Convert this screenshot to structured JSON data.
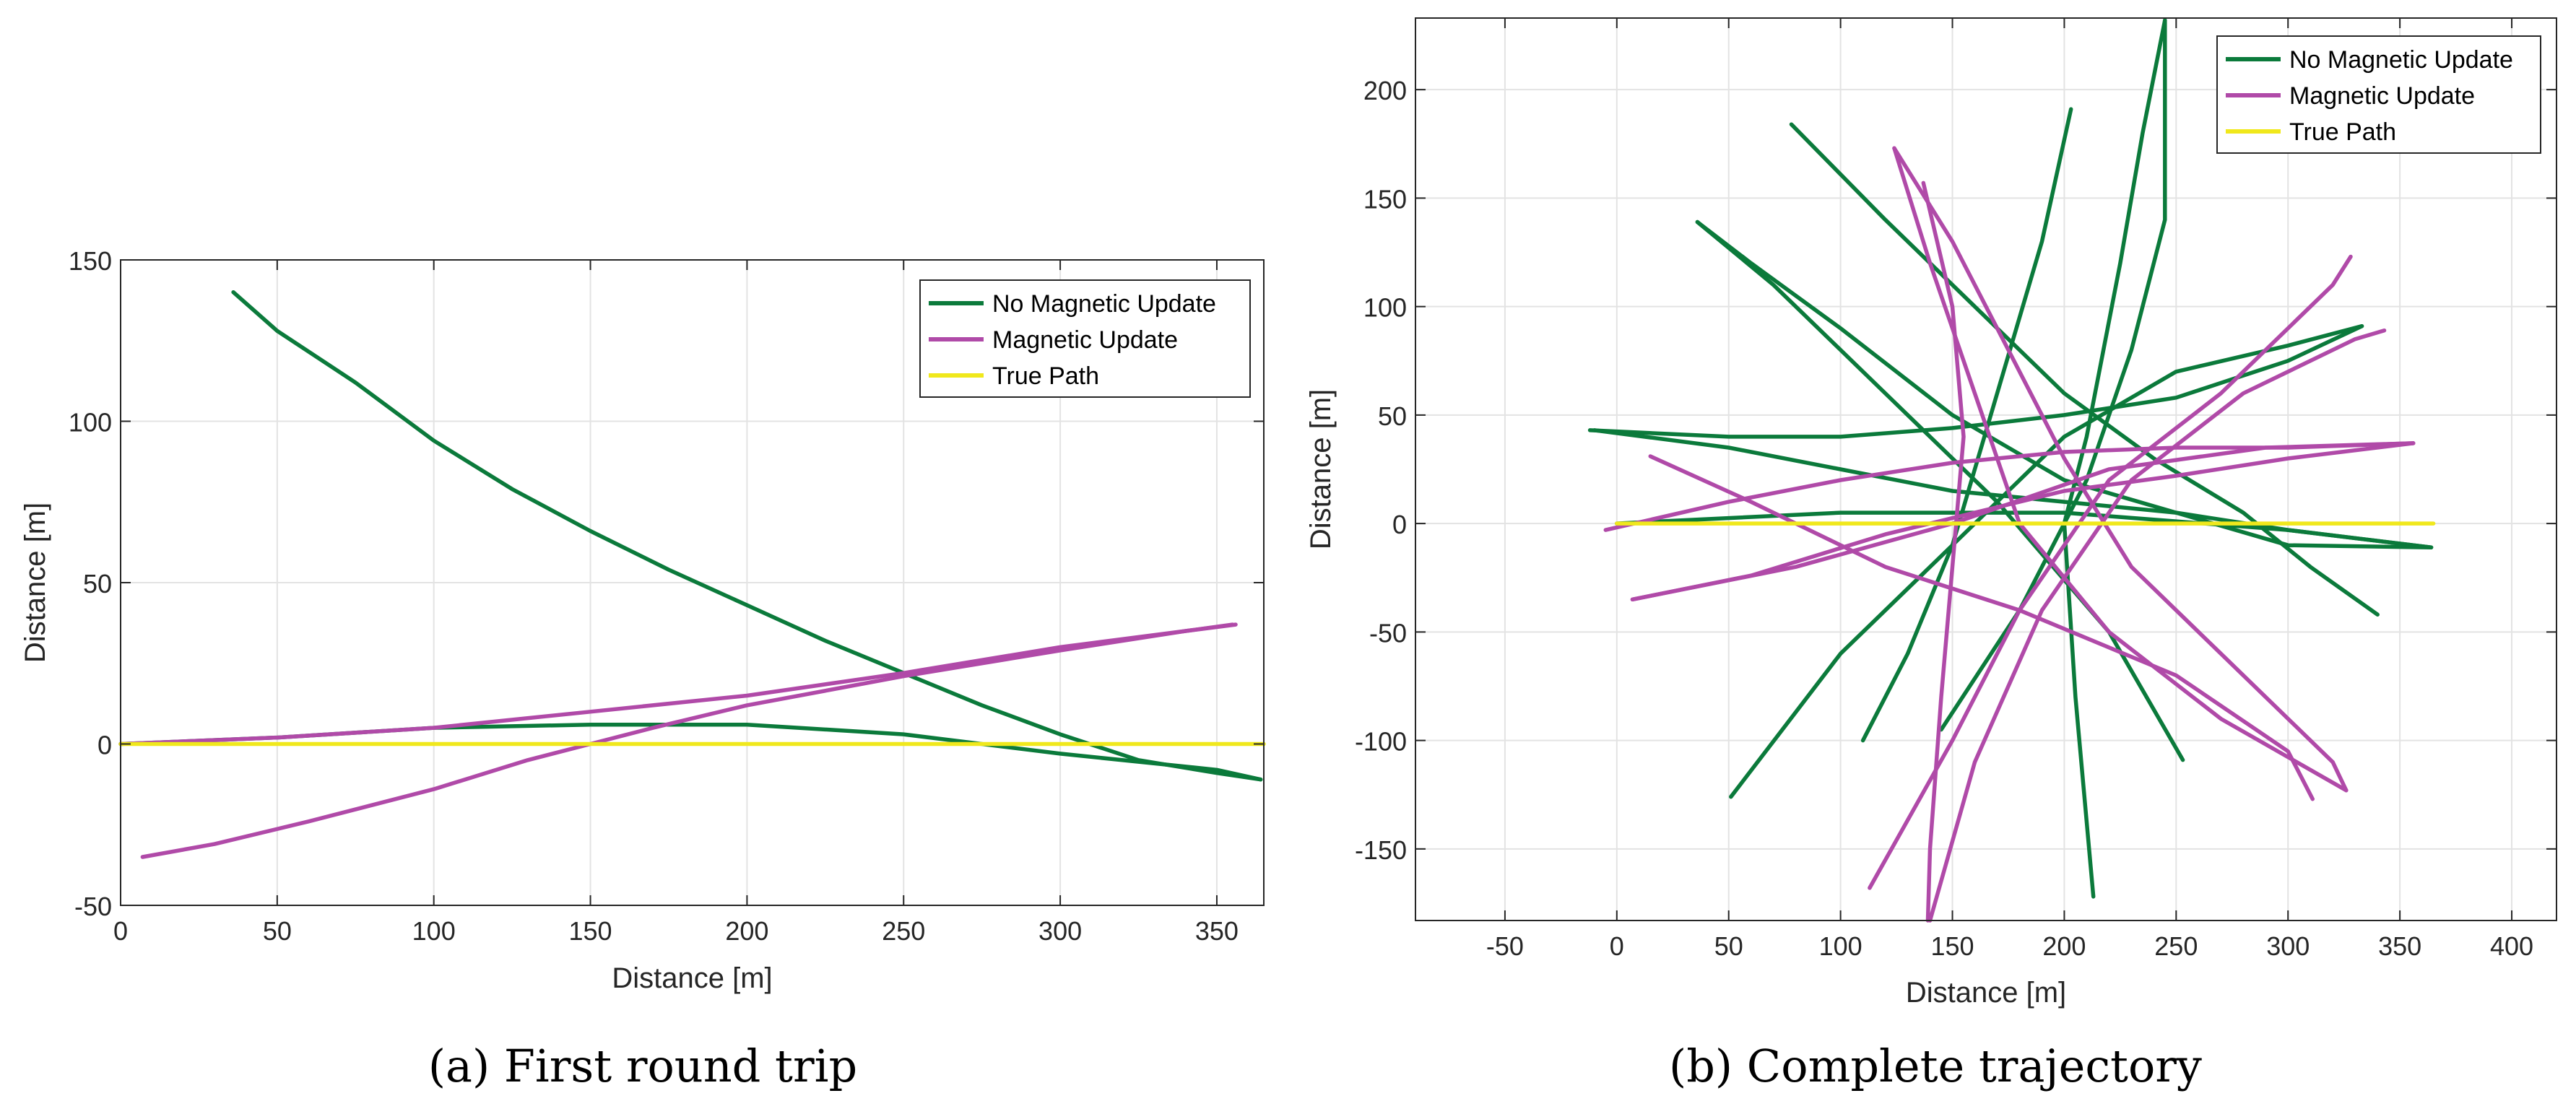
{
  "chart_data": [
    {
      "type": "line",
      "caption": "(a)  First round trip",
      "xlabel": "Distance [m]",
      "ylabel": "Distance [m]",
      "xlim": [
        0,
        365
      ],
      "ylim": [
        -50,
        150
      ],
      "xticks": [
        0,
        50,
        100,
        150,
        200,
        250,
        300,
        350
      ],
      "yticks": [
        -50,
        0,
        50,
        100,
        150
      ],
      "grid": true,
      "legend_position": "top-right",
      "legend": [
        "No Magnetic Update",
        "Magnetic Update",
        "True Path"
      ],
      "series": [
        {
          "name": "No Magnetic Update",
          "color": "#0b7a3b",
          "paths": [
            [
              [
                36,
                140
              ],
              [
                50,
                128
              ],
              [
                75,
                112
              ],
              [
                100,
                94
              ],
              [
                125,
                79
              ],
              [
                150,
                66
              ],
              [
                175,
                54
              ],
              [
                200,
                43
              ],
              [
                225,
                32
              ],
              [
                250,
                22
              ],
              [
                275,
                12
              ],
              [
                300,
                3
              ],
              [
                325,
                -5
              ],
              [
                350,
                -9
              ],
              [
                364,
                -11
              ]
            ],
            [
              [
                0,
                0
              ],
              [
                50,
                2
              ],
              [
                100,
                5
              ],
              [
                150,
                6
              ],
              [
                200,
                6
              ],
              [
                250,
                3
              ],
              [
                300,
                -3
              ],
              [
                350,
                -8
              ],
              [
                364,
                -11
              ]
            ]
          ]
        },
        {
          "name": "Magnetic Update",
          "color": "#b04aa8",
          "paths": [
            [
              [
                7,
                -35
              ],
              [
                30,
                -31
              ],
              [
                60,
                -24
              ],
              [
                100,
                -14
              ],
              [
                130,
                -5
              ],
              [
                150,
                0
              ],
              [
                170,
                5
              ],
              [
                200,
                12
              ],
              [
                250,
                21
              ],
              [
                300,
                29
              ],
              [
                340,
                35
              ],
              [
                355,
                37
              ]
            ],
            [
              [
                0,
                0
              ],
              [
                50,
                2
              ],
              [
                100,
                5
              ],
              [
                150,
                10
              ],
              [
                200,
                15
              ],
              [
                250,
                22
              ],
              [
                300,
                30
              ],
              [
                356,
                37
              ]
            ]
          ]
        },
        {
          "name": "True Path",
          "color": "#f0e81c",
          "paths": [
            [
              [
                0,
                0
              ],
              [
                365,
                0
              ]
            ]
          ]
        }
      ]
    },
    {
      "type": "line",
      "caption": "(b)  Complete trajectory",
      "xlabel": "Distance [m]",
      "ylabel": "Distance [m]",
      "xlim": [
        -90,
        420
      ],
      "ylim": [
        -183,
        233
      ],
      "xticks": [
        -50,
        0,
        50,
        100,
        150,
        200,
        250,
        300,
        350,
        400
      ],
      "yticks": [
        -150,
        -100,
        -50,
        0,
        50,
        100,
        150,
        200
      ],
      "grid": true,
      "legend_position": "top-right",
      "legend": [
        "No Magnetic Update",
        "Magnetic Update",
        "True Path"
      ],
      "series": [
        {
          "name": "No Magnetic Update",
          "color": "#0b7a3b",
          "paths": [
            [
              [
                -12,
                43
              ],
              [
                50,
                40
              ],
              [
                100,
                40
              ],
              [
                150,
                44
              ],
              [
                200,
                50
              ],
              [
                250,
                58
              ],
              [
                300,
                75
              ],
              [
                333,
                91
              ]
            ],
            [
              [
                78,
                184
              ],
              [
                120,
                140
              ],
              [
                160,
                100
              ],
              [
                200,
                60
              ],
              [
                240,
                30
              ],
              [
                280,
                5
              ],
              [
                310,
                -20
              ],
              [
                340,
                -42
              ]
            ],
            [
              [
                36,
                139
              ],
              [
                70,
                110
              ],
              [
                120,
                60
              ],
              [
                170,
                10
              ],
              [
                220,
                -50
              ],
              [
                253,
                -109
              ]
            ],
            [
              [
                51,
                -126
              ],
              [
                100,
                -60
              ],
              [
                150,
                -10
              ],
              [
                200,
                40
              ],
              [
                250,
                70
              ],
              [
                300,
                82
              ],
              [
                333,
                91
              ]
            ],
            [
              [
                -10,
                43
              ],
              [
                50,
                35
              ],
              [
                100,
                25
              ],
              [
                150,
                15
              ],
              [
                200,
                10
              ],
              [
                250,
                5
              ],
              [
                300,
                -3
              ],
              [
                364,
                -11
              ]
            ],
            [
              [
                0,
                0
              ],
              [
                100,
                5
              ],
              [
                200,
                5
              ],
              [
                300,
                -3
              ],
              [
                364,
                -11
              ]
            ],
            [
              [
                203,
                191
              ],
              [
                190,
                130
              ],
              [
                170,
                60
              ],
              [
                150,
                -10
              ],
              [
                130,
                -60
              ],
              [
                110,
                -100
              ]
            ],
            [
              [
                245,
                232
              ],
              [
                235,
                180
              ],
              [
                225,
                120
              ],
              [
                210,
                40
              ],
              [
                200,
                0
              ],
              [
                205,
                -80
              ],
              [
                213,
                -172
              ]
            ],
            [
              [
                145,
                -95
              ],
              [
                180,
                -40
              ],
              [
                210,
                20
              ],
              [
                230,
                80
              ],
              [
                245,
                140
              ],
              [
                245,
                232
              ]
            ],
            [
              [
                36,
                139
              ],
              [
                60,
                120
              ],
              [
                100,
                90
              ],
              [
                150,
                50
              ],
              [
                200,
                20
              ],
              [
                250,
                5
              ],
              [
                300,
                -10
              ],
              [
                364,
                -11
              ]
            ]
          ]
        },
        {
          "name": "Magnetic Update",
          "color": "#b04aa8",
          "paths": [
            [
              [
                7,
                -35
              ],
              [
                60,
                -24
              ],
              [
                120,
                -5
              ],
              [
                160,
                5
              ],
              [
                200,
                15
              ],
              [
                250,
                22
              ],
              [
                300,
                30
              ],
              [
                356,
                37
              ]
            ],
            [
              [
                -5,
                -3
              ],
              [
                50,
                10
              ],
              [
                100,
                20
              ],
              [
                150,
                28
              ],
              [
                200,
                33
              ],
              [
                250,
                35
              ],
              [
                300,
                35
              ],
              [
                356,
                37
              ]
            ],
            [
              [
                15,
                31
              ],
              [
                60,
                10
              ],
              [
                120,
                -20
              ],
              [
                180,
                -40
              ],
              [
                250,
                -70
              ],
              [
                300,
                -105
              ],
              [
                311,
                -127
              ]
            ],
            [
              [
                124,
                173
              ],
              [
                140,
                120
              ],
              [
                160,
                60
              ],
              [
                180,
                0
              ],
              [
                220,
                -50
              ],
              [
                270,
                -90
              ],
              [
                326,
                -123
              ]
            ],
            [
              [
                137,
                157
              ],
              [
                150,
                100
              ],
              [
                155,
                40
              ],
              [
                150,
                -20
              ],
              [
                145,
                -80
              ],
              [
                140,
                -150
              ],
              [
                139,
                -183
              ]
            ],
            [
              [
                113,
                -168
              ],
              [
                150,
                -100
              ],
              [
                180,
                -40
              ],
              [
                220,
                20
              ],
              [
                270,
                60
              ],
              [
                320,
                110
              ],
              [
                328,
                123
              ]
            ],
            [
              [
                140,
                -183
              ],
              [
                160,
                -110
              ],
              [
                190,
                -40
              ],
              [
                230,
                20
              ],
              [
                280,
                60
              ],
              [
                330,
                85
              ],
              [
                343,
                89
              ]
            ],
            [
              [
                7,
                -35
              ],
              [
                80,
                -20
              ],
              [
                150,
                0
              ],
              [
                220,
                25
              ],
              [
                290,
                35
              ],
              [
                356,
                37
              ]
            ],
            [
              [
                124,
                173
              ],
              [
                150,
                130
              ],
              [
                175,
                80
              ],
              [
                200,
                30
              ],
              [
                230,
                -20
              ],
              [
                270,
                -60
              ],
              [
                320,
                -110
              ],
              [
                326,
                -123
              ]
            ]
          ]
        },
        {
          "name": "True Path",
          "color": "#f0e81c",
          "paths": [
            [
              [
                0,
                0
              ],
              [
                365,
                0
              ]
            ]
          ]
        }
      ]
    }
  ]
}
